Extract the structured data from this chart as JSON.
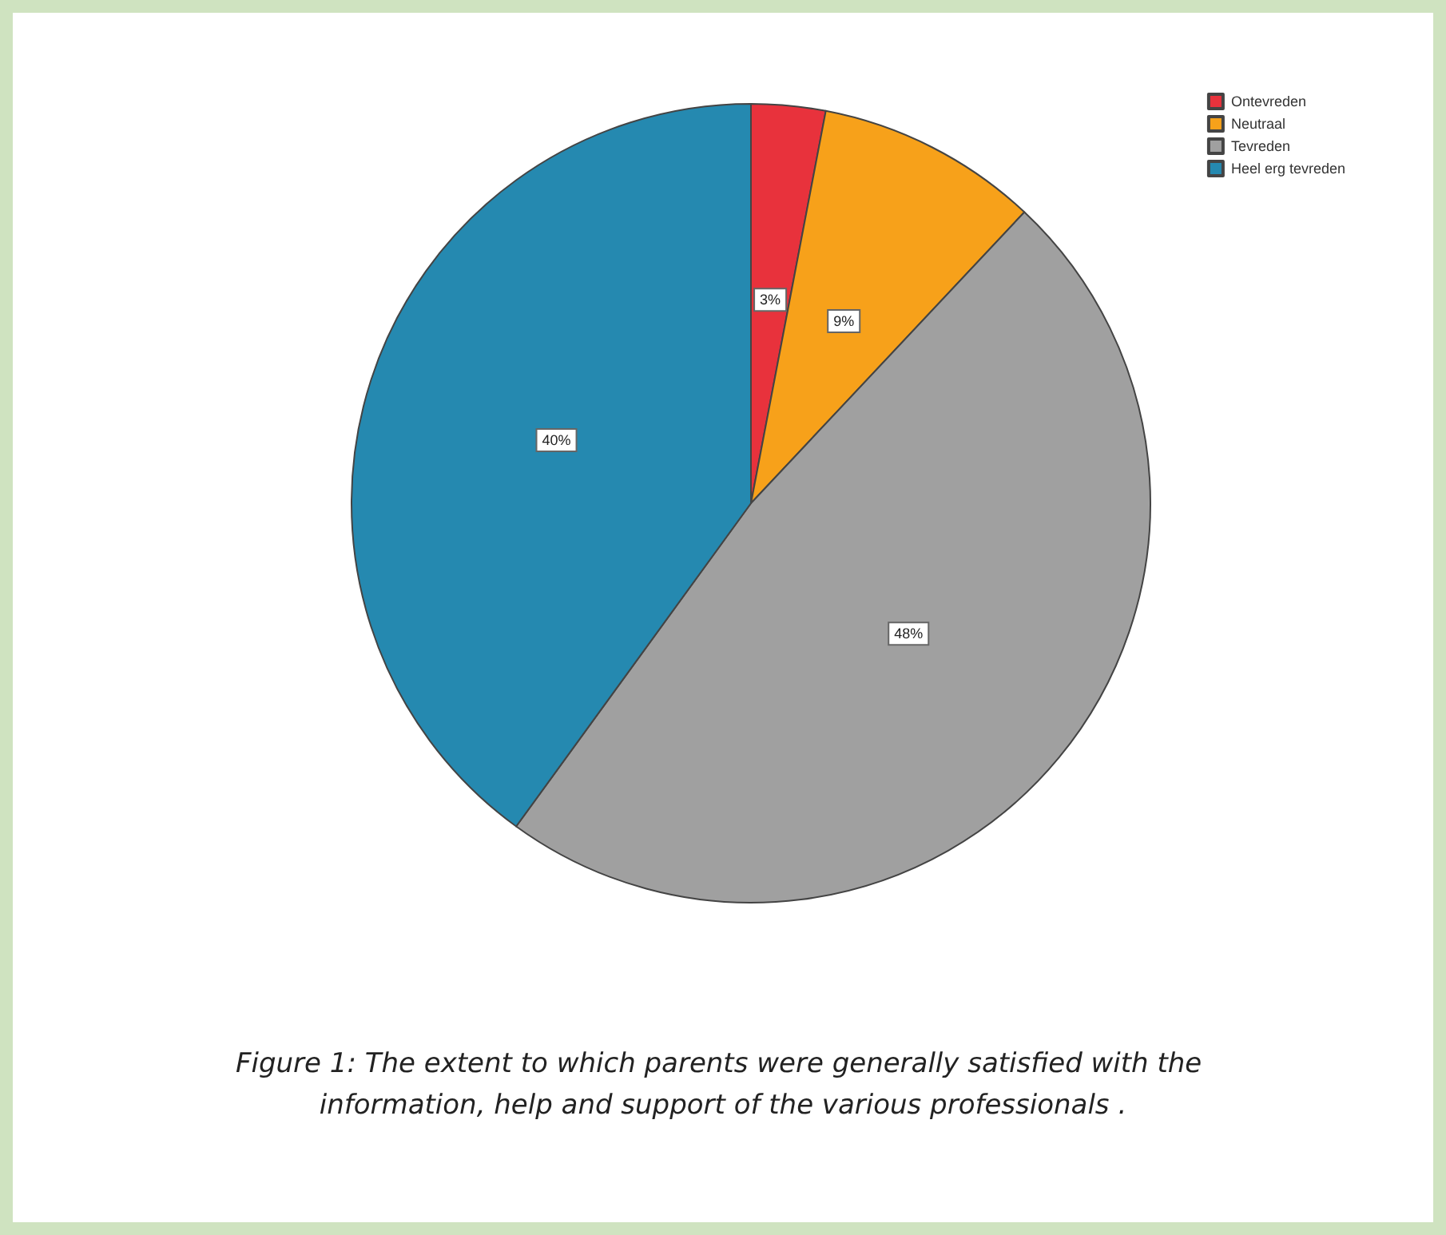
{
  "chart_data": {
    "type": "pie",
    "title": "Figure 1: The extent to which parents were generally satisfied with the information, help and support of the various professionals .",
    "categories": [
      "Ontevreden",
      "Neutraal",
      "Tevreden",
      "Heel erg tevreden"
    ],
    "values": [
      3,
      9,
      48,
      40
    ],
    "colors": [
      "#e8323c",
      "#f7a11a",
      "#a0a0a0",
      "#2589b0"
    ],
    "value_labels": [
      "3%",
      "9%",
      "48%",
      "40%"
    ],
    "legend": "top right"
  }
}
